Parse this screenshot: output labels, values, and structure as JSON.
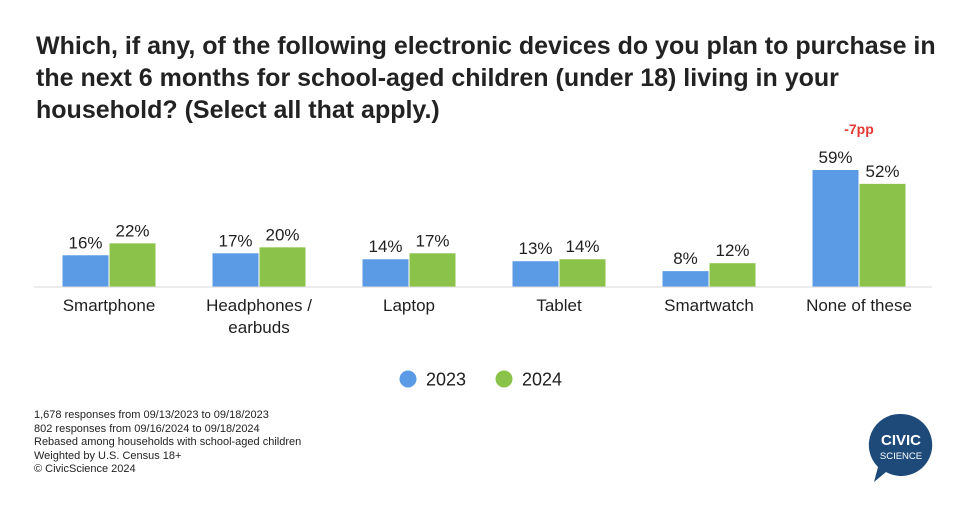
{
  "chart_data": {
    "type": "bar",
    "title": "Which, if any, of the following electronic devices do you plan to purchase in the next 6 months for school-aged children (under 18) living in your household? (Select all that apply.)",
    "categories": [
      "Smartphone",
      "Headphones /\nearbuds",
      "Laptop",
      "Tablet",
      "Smartwatch",
      "None of these"
    ],
    "series": [
      {
        "name": "2023",
        "values": [
          16,
          17,
          14,
          13,
          8,
          59
        ],
        "labels": [
          "16%",
          "17%",
          "14%",
          "13%",
          "8%",
          "59%"
        ],
        "color": "#5b9be6"
      },
      {
        "name": "2024",
        "values": [
          22,
          20,
          17,
          14,
          12,
          52
        ],
        "labels": [
          "22%",
          "20%",
          "17%",
          "14%",
          "12%",
          "52%"
        ],
        "color": "#8bc34a"
      }
    ],
    "ylim": [
      0,
      60
    ],
    "grid": false,
    "legend": "bottom-center",
    "annotations": [
      {
        "category": "None of these",
        "text": "-7pp",
        "color": "#e53935"
      }
    ]
  },
  "footnotes": [
    "1,678 responses from 09/13/2023 to 09/18/2023",
    "802 responses from 09/16/2024 to 09/18/2024",
    "Rebased among households with school-aged children",
    "Weighted by U.S. Census 18+",
    "© CivicScience 2024"
  ],
  "logo": {
    "line1": "CIVIC",
    "line2": "SCIENCE",
    "color": "#1e4a7a"
  }
}
